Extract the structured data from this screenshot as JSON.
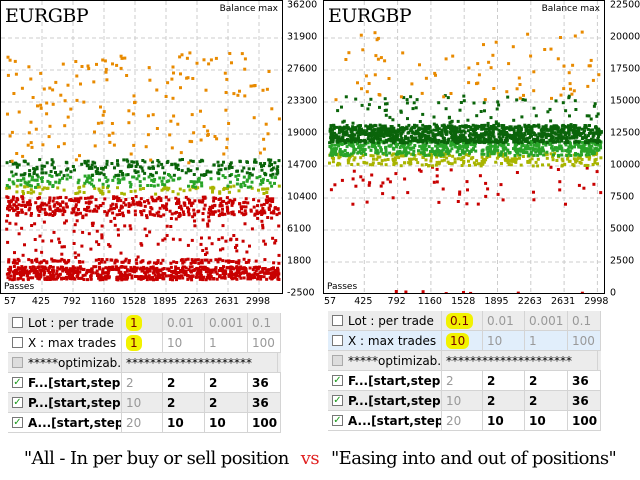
{
  "charts": [
    {
      "title": "EURGBP",
      "balance_label": "Balance max",
      "passes_label": "Passes",
      "y_ticks": [
        "36200",
        "31900",
        "27600",
        "23300",
        "19000",
        "14700",
        "10400",
        "6100",
        "1800",
        "-2500"
      ],
      "x_ticks": [
        "57",
        "425",
        "792",
        "1160",
        "1528",
        "1895",
        "2263",
        "2631",
        "2998"
      ]
    },
    {
      "title": "EURGBP",
      "balance_label": "Balance max",
      "passes_label": "Passes",
      "y_ticks": [
        "22500",
        "20000",
        "17500",
        "15000",
        "12500",
        "10000",
        "7500",
        "5000",
        "2500",
        "0"
      ],
      "x_ticks": [
        "57",
        "425",
        "792",
        "1160",
        "1528",
        "1895",
        "2263",
        "2631",
        "2998"
      ]
    }
  ],
  "tables": [
    {
      "rows": [
        {
          "name": "Lot : per trade",
          "checked": false,
          "values": [
            "1",
            "0.01",
            "0.001",
            "0.1"
          ]
        },
        {
          "name": "X : max trades ...",
          "checked": false,
          "values": [
            "1",
            "10",
            "1",
            "100"
          ]
        },
        {
          "name": "*****optimizab...",
          "checked": false,
          "values": [
            "*********************"
          ]
        },
        {
          "name": "F...[start,step,s...",
          "checked": true,
          "values": [
            "2",
            "2",
            "2",
            "36"
          ]
        },
        {
          "name": "P...[start,step,...",
          "checked": true,
          "values": [
            "10",
            "2",
            "2",
            "36"
          ]
        },
        {
          "name": "A...[start,step,...",
          "checked": true,
          "values": [
            "20",
            "10",
            "10",
            "100"
          ]
        }
      ]
    },
    {
      "rows": [
        {
          "name": "Lot : per trade",
          "checked": false,
          "values": [
            "0.1",
            "0.01",
            "0.001",
            "0.1"
          ]
        },
        {
          "name": "X : max trades ...",
          "checked": false,
          "values": [
            "10",
            "10",
            "1",
            "100"
          ]
        },
        {
          "name": "*****optimizab...",
          "checked": false,
          "values": [
            "*********************"
          ]
        },
        {
          "name": "F...[start,step,s...",
          "checked": true,
          "values": [
            "2",
            "2",
            "2",
            "36"
          ]
        },
        {
          "name": "P...[start,step,...",
          "checked": true,
          "values": [
            "10",
            "2",
            "2",
            "36"
          ]
        },
        {
          "name": "A...[start,step,...",
          "checked": true,
          "values": [
            "20",
            "10",
            "10",
            "100"
          ]
        }
      ]
    }
  ],
  "caption": {
    "left": "\"All - In per buy or sell position",
    "vs": "vs",
    "right": "\"Easing into and out of positions\""
  },
  "chart_data": [
    {
      "type": "scatter",
      "title": "EURGBP",
      "ylabel": "Balance max",
      "xlabel": "Passes",
      "ylim": [
        -2500,
        36200
      ],
      "xlim": [
        0,
        3200
      ],
      "bands": [
        {
          "color": "#c80000",
          "ymin": -600,
          "ymax": 1200,
          "count": 700
        },
        {
          "color": "#c80000",
          "ymin": 1600,
          "ymax": 2200,
          "count": 120
        },
        {
          "color": "#c80000",
          "ymin": 2200,
          "ymax": 8000,
          "count": 130
        },
        {
          "color": "#c80000",
          "ymin": 8000,
          "ymax": 10600,
          "count": 420
        },
        {
          "color": "#a8b400",
          "ymin": 10900,
          "ymax": 12000,
          "count": 90
        },
        {
          "color": "#28a428",
          "ymin": 11800,
          "ymax": 13600,
          "count": 160
        },
        {
          "color": "#0a640a",
          "ymin": 13400,
          "ymax": 15600,
          "count": 220
        },
        {
          "color": "#e88a00",
          "ymin": 15000,
          "ymax": 30000,
          "count": 170
        }
      ]
    },
    {
      "type": "scatter",
      "title": "EURGBP",
      "ylabel": "Balance max",
      "xlabel": "Passes",
      "ylim": [
        0,
        22500
      ],
      "xlim": [
        0,
        3200
      ],
      "bands": [
        {
          "color": "#c80000",
          "ymin": 0,
          "ymax": 200,
          "count": 8
        },
        {
          "color": "#c80000",
          "ymin": 7000,
          "ymax": 10000,
          "count": 60
        },
        {
          "color": "#a8b400",
          "ymin": 10000,
          "ymax": 11000,
          "count": 250
        },
        {
          "color": "#28a428",
          "ymin": 10800,
          "ymax": 12000,
          "count": 600
        },
        {
          "color": "#0a640a",
          "ymin": 11800,
          "ymax": 13200,
          "count": 1100
        },
        {
          "color": "#0a640a",
          "ymin": 13200,
          "ymax": 15500,
          "count": 90
        },
        {
          "color": "#e88a00",
          "ymin": 15000,
          "ymax": 20500,
          "count": 80
        }
      ]
    }
  ]
}
